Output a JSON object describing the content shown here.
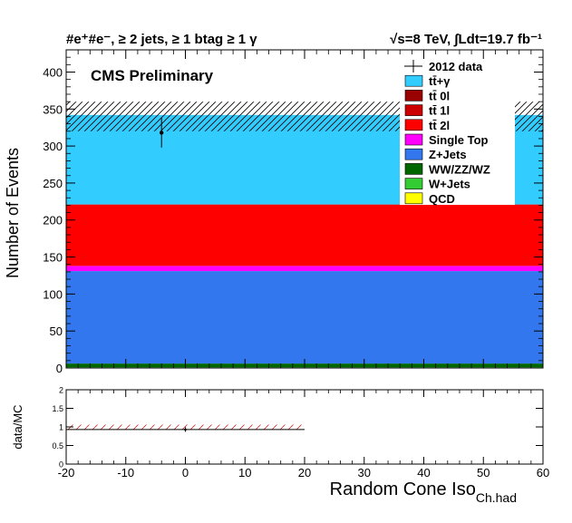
{
  "header": {
    "left_title": "#e⁺#e⁻, ≥ 2 jets, ≥ 1 btag ≥ 1 γ",
    "right_title": "√s=8 TeV, ∫Ldt=19.7 fb⁻¹"
  },
  "label": "CMS Preliminary",
  "chart_data": [
    {
      "type": "bar",
      "panel": "main",
      "ylabel": "Number of Events",
      "xlim": [
        -20,
        60
      ],
      "ylim": [
        0,
        430
      ],
      "x_ticks": [
        -20,
        -10,
        0,
        10,
        20,
        30,
        40,
        50,
        60
      ],
      "y_ticks": [
        0,
        50,
        100,
        150,
        200,
        250,
        300,
        350,
        400
      ],
      "bins": [
        [
          -20,
          60
        ]
      ],
      "stack_colors": {
        "QCD": "#ffff00",
        "W+Jets": "#33cc33",
        "WW/ZZ/WZ": "#006600",
        "Z+Jets": "#3377ee",
        "Single Top": "#ff00ff",
        "tt 2l": "#ff0000",
        "tt 1l": "#cc0000",
        "tt 0l": "#990000",
        "tt+gamma": "#33ccff"
      },
      "series": [
        {
          "name": "QCD",
          "values": [
            0
          ]
        },
        {
          "name": "W+Jets",
          "values": [
            1
          ]
        },
        {
          "name": "WW/ZZ/WZ",
          "values": [
            5
          ]
        },
        {
          "name": "Z+Jets",
          "values": [
            125
          ]
        },
        {
          "name": "Single Top",
          "values": [
            7
          ]
        },
        {
          "name": "tt̄ 2l",
          "values": [
            83
          ]
        },
        {
          "name": "tt̄ 1l",
          "values": [
            0
          ]
        },
        {
          "name": "tt̄ 0l",
          "values": [
            0
          ]
        },
        {
          "name": "tt̄+γ",
          "values": [
            121
          ]
        }
      ],
      "mc_total": 341,
      "mc_uncertainty_band": [
        320,
        360
      ],
      "data_points": [
        {
          "name": "2012 data",
          "x": -4,
          "y": 318,
          "yerr": 20
        }
      ],
      "legend": {
        "placement": "top-right",
        "entries": [
          "2012 data",
          "tt̄+γ",
          "tt̄ 0l",
          "tt̄ 1l",
          "tt̄ 2l",
          "Single Top",
          "Z+Jets",
          "WW/ZZ/WZ",
          "W+Jets",
          "QCD"
        ]
      }
    },
    {
      "type": "scatter",
      "panel": "ratio",
      "xlabel": "Random Cone Iso",
      "xlabel_sub": "Ch.had",
      "ylabel": "data/MC",
      "xlim": [
        -20,
        60
      ],
      "ylim": [
        0,
        2
      ],
      "x_ticks": [
        -20,
        -10,
        0,
        10,
        20,
        30,
        40,
        50,
        60
      ],
      "y_ticks": [
        0,
        0.5,
        1,
        1.5,
        2
      ],
      "ratio_points": [
        {
          "x": 0,
          "y": 0.93,
          "yerr": 0.06
        }
      ],
      "band_range": [
        -20,
        20
      ],
      "band": [
        0.94,
        1.06
      ],
      "reference_line": 0.93
    }
  ]
}
